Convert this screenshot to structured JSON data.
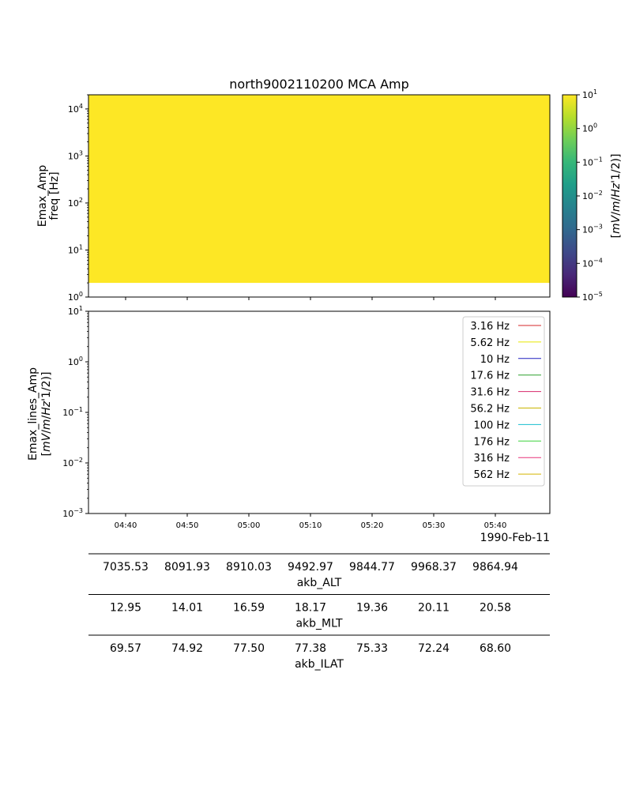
{
  "chart_data": [
    {
      "type": "heatmap",
      "title": "north9002110200 MCA Amp",
      "ylabel_lines": [
        "Emax_Amp",
        "freq [Hz]"
      ],
      "yscale": "log",
      "ylim": [
        1,
        20000
      ],
      "y_ticks": [
        {
          "value": 1,
          "base": "10",
          "exp": "0"
        },
        {
          "value": 10,
          "base": "10",
          "exp": "1"
        },
        {
          "value": 100,
          "base": "10",
          "exp": "2"
        },
        {
          "value": 1000,
          "base": "10",
          "exp": "3"
        },
        {
          "value": 10000,
          "base": "10",
          "exp": "4"
        }
      ],
      "fill_region": {
        "y_from": 2,
        "y_to": 20000,
        "color": "#fde725",
        "value": 10
      },
      "colorbar": {
        "label": "[mV/m/Hz^(1/2)]",
        "scale": "log",
        "range": [
          1e-05,
          10
        ],
        "colormap": "viridis",
        "colors": [
          "#440154",
          "#482878",
          "#3e4989",
          "#31688e",
          "#26828e",
          "#1f9e89",
          "#35b779",
          "#6ece58",
          "#b5de2b",
          "#fde725"
        ],
        "ticks": [
          {
            "value": 10,
            "base": "10",
            "exp": "1"
          },
          {
            "value": 1,
            "base": "10",
            "exp": "0"
          },
          {
            "value": 0.1,
            "base": "10",
            "exp": "−1"
          },
          {
            "value": 0.01,
            "base": "10",
            "exp": "−2"
          },
          {
            "value": 0.001,
            "base": "10",
            "exp": "−3"
          },
          {
            "value": 0.0001,
            "base": "10",
            "exp": "−4"
          },
          {
            "value": 1e-05,
            "base": "10",
            "exp": "−5"
          }
        ]
      }
    },
    {
      "type": "line",
      "ylabel_lines": [
        "Emax_lines_Amp",
        "[mV/m/Hz^(1/2)]"
      ],
      "yscale": "log",
      "ylim": [
        0.001,
        10
      ],
      "y_ticks": [
        {
          "value": 0.001,
          "base": "10",
          "exp": "−3"
        },
        {
          "value": 0.01,
          "base": "10",
          "exp": "−2"
        },
        {
          "value": 0.1,
          "base": "10",
          "exp": "−1"
        },
        {
          "value": 1,
          "base": "10",
          "exp": "0"
        },
        {
          "value": 10,
          "base": "10",
          "exp": "1"
        }
      ],
      "x_ticks": [
        "04:40",
        "04:50",
        "05:00",
        "05:10",
        "05:20",
        "05:30",
        "05:40"
      ],
      "date_label": "1990-Feb-11",
      "legend_position": "top-right",
      "series": [
        {
          "name": "3.16 Hz",
          "color": "#d62728",
          "values": []
        },
        {
          "name": "5.62 Hz",
          "color": "#e8e800",
          "values": []
        },
        {
          "name": "10 Hz",
          "color": "#1f1fbf",
          "values": []
        },
        {
          "name": "17.6 Hz",
          "color": "#2ca02c",
          "values": []
        },
        {
          "name": "31.6 Hz",
          "color": "#d6276a",
          "values": []
        },
        {
          "name": "56.2 Hz",
          "color": "#c8b400",
          "values": []
        },
        {
          "name": "100 Hz",
          "color": "#17becf",
          "values": []
        },
        {
          "name": "176 Hz",
          "color": "#3cd23c",
          "values": []
        },
        {
          "name": "316 Hz",
          "color": "#e8337a",
          "values": []
        },
        {
          "name": "562 Hz",
          "color": "#d4b400",
          "values": []
        }
      ]
    },
    {
      "type": "table",
      "rows": [
        {
          "label": "akb_ALT",
          "values": [
            "7035.53",
            "8091.93",
            "8910.03",
            "9492.97",
            "9844.77",
            "9968.37",
            "9864.94"
          ]
        },
        {
          "label": "akb_MLT",
          "values": [
            "12.95",
            "14.01",
            "16.59",
            "18.17",
            "19.36",
            "20.11",
            "20.58"
          ]
        },
        {
          "label": "akb_ILAT",
          "values": [
            "69.57",
            "74.92",
            "77.50",
            "77.38",
            "75.33",
            "72.24",
            "68.60"
          ]
        }
      ]
    }
  ]
}
